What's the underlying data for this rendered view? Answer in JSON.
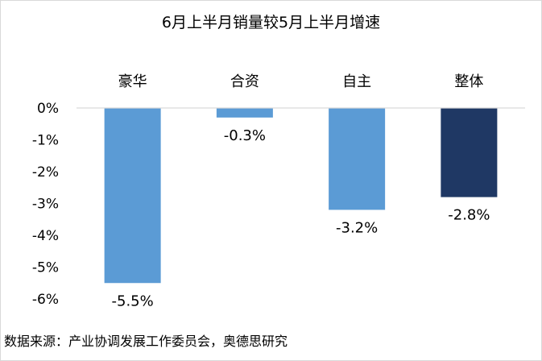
{
  "chart_data": {
    "type": "bar",
    "title": "6月上半月销量较5月上半月增速",
    "categories": [
      "豪华",
      "合资",
      "自主",
      "整体"
    ],
    "values": [
      -5.5,
      -0.3,
      -3.2,
      -2.8
    ],
    "data_labels": [
      "-5.5%",
      "-0.3%",
      "-3.2%",
      "-2.8%"
    ],
    "ylim": [
      -6,
      0
    ],
    "y_ticks": [
      0,
      -1,
      -2,
      -3,
      -4,
      -5,
      -6
    ],
    "y_tick_labels": [
      "0%",
      "-1%",
      "-2%",
      "-3%",
      "-4%",
      "-5%",
      "-6%"
    ],
    "xlabel": "",
    "ylabel": "",
    "grid": false,
    "category_axis_position": "top",
    "legend": "none"
  },
  "colors": {
    "bar": "#5b9bd5",
    "bar_highlight": "#1f3864",
    "axis": "#d9d9d9"
  },
  "source": "数据来源：产业协调发展工作委员会，奥德思研究"
}
